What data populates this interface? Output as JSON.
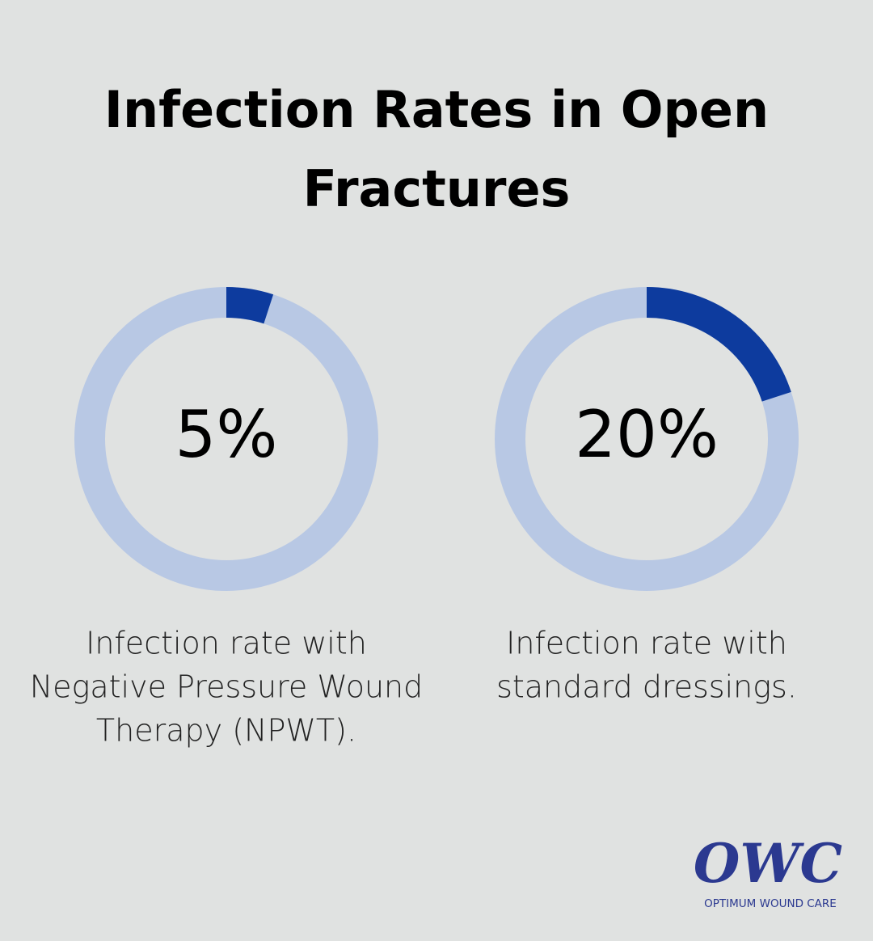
{
  "title": "Infection Rates in Open Fractures",
  "chart_data": [
    {
      "type": "donut",
      "values": [
        5
      ],
      "value_labels": [
        "5%"
      ],
      "ylim": [
        0,
        100
      ],
      "color": "#0d3b9e",
      "track_color": "#b8c8e4",
      "description": [
        "Infection rate with",
        "Negative Pressure Wound",
        "Therapy (NPWT)."
      ]
    },
    {
      "type": "donut",
      "values": [
        20
      ],
      "value_labels": [
        "20%"
      ],
      "ylim": [
        0,
        100
      ],
      "color": "#0d3b9e",
      "track_color": "#b8c8e4",
      "description": [
        "Infection rate with",
        "standard dressings."
      ]
    }
  ],
  "logo": {
    "mark": "OWC",
    "name": "OPTIMUM WOUND CARE"
  }
}
